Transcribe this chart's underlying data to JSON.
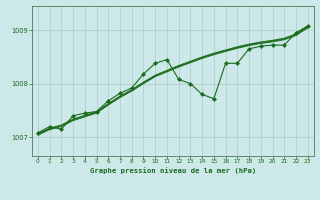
{
  "title": "Graphe pression niveau de la mer (hPa)",
  "xlabel_ticks": [
    0,
    1,
    2,
    3,
    4,
    5,
    6,
    7,
    8,
    9,
    10,
    11,
    12,
    13,
    14,
    15,
    16,
    17,
    18,
    19,
    20,
    21,
    22,
    23
  ],
  "yticks": [
    1007,
    1008,
    1009
  ],
  "ylim": [
    1006.65,
    1009.45
  ],
  "xlim": [
    -0.5,
    23.5
  ],
  "bg_color": "#cce8e8",
  "grid_color": "#aacccc",
  "line_color": "#1a6b1a",
  "marker_color": "#1a6b1a",
  "x": [
    0,
    1,
    2,
    3,
    4,
    5,
    6,
    7,
    8,
    9,
    10,
    11,
    12,
    13,
    14,
    15,
    16,
    17,
    18,
    19,
    20,
    21,
    22,
    23
  ],
  "main_data": [
    1007.08,
    1007.2,
    1007.15,
    1007.4,
    1007.45,
    1007.48,
    1007.68,
    1007.82,
    1007.92,
    1008.18,
    1008.38,
    1008.45,
    1008.08,
    1008.0,
    1007.8,
    1007.72,
    1008.38,
    1008.38,
    1008.65,
    1008.7,
    1008.72,
    1008.72,
    1008.95,
    1009.08
  ],
  "smooth_offsets": [
    -0.02,
    -0.01,
    0.0,
    0.01
  ],
  "smooth_data": [
    1007.06,
    1007.16,
    1007.22,
    1007.33,
    1007.4,
    1007.47,
    1007.62,
    1007.76,
    1007.88,
    1008.02,
    1008.15,
    1008.24,
    1008.33,
    1008.41,
    1008.49,
    1008.56,
    1008.62,
    1008.68,
    1008.73,
    1008.77,
    1008.8,
    1008.84,
    1008.92,
    1009.06
  ],
  "figwidth": 3.2,
  "figheight": 2.0,
  "dpi": 100
}
